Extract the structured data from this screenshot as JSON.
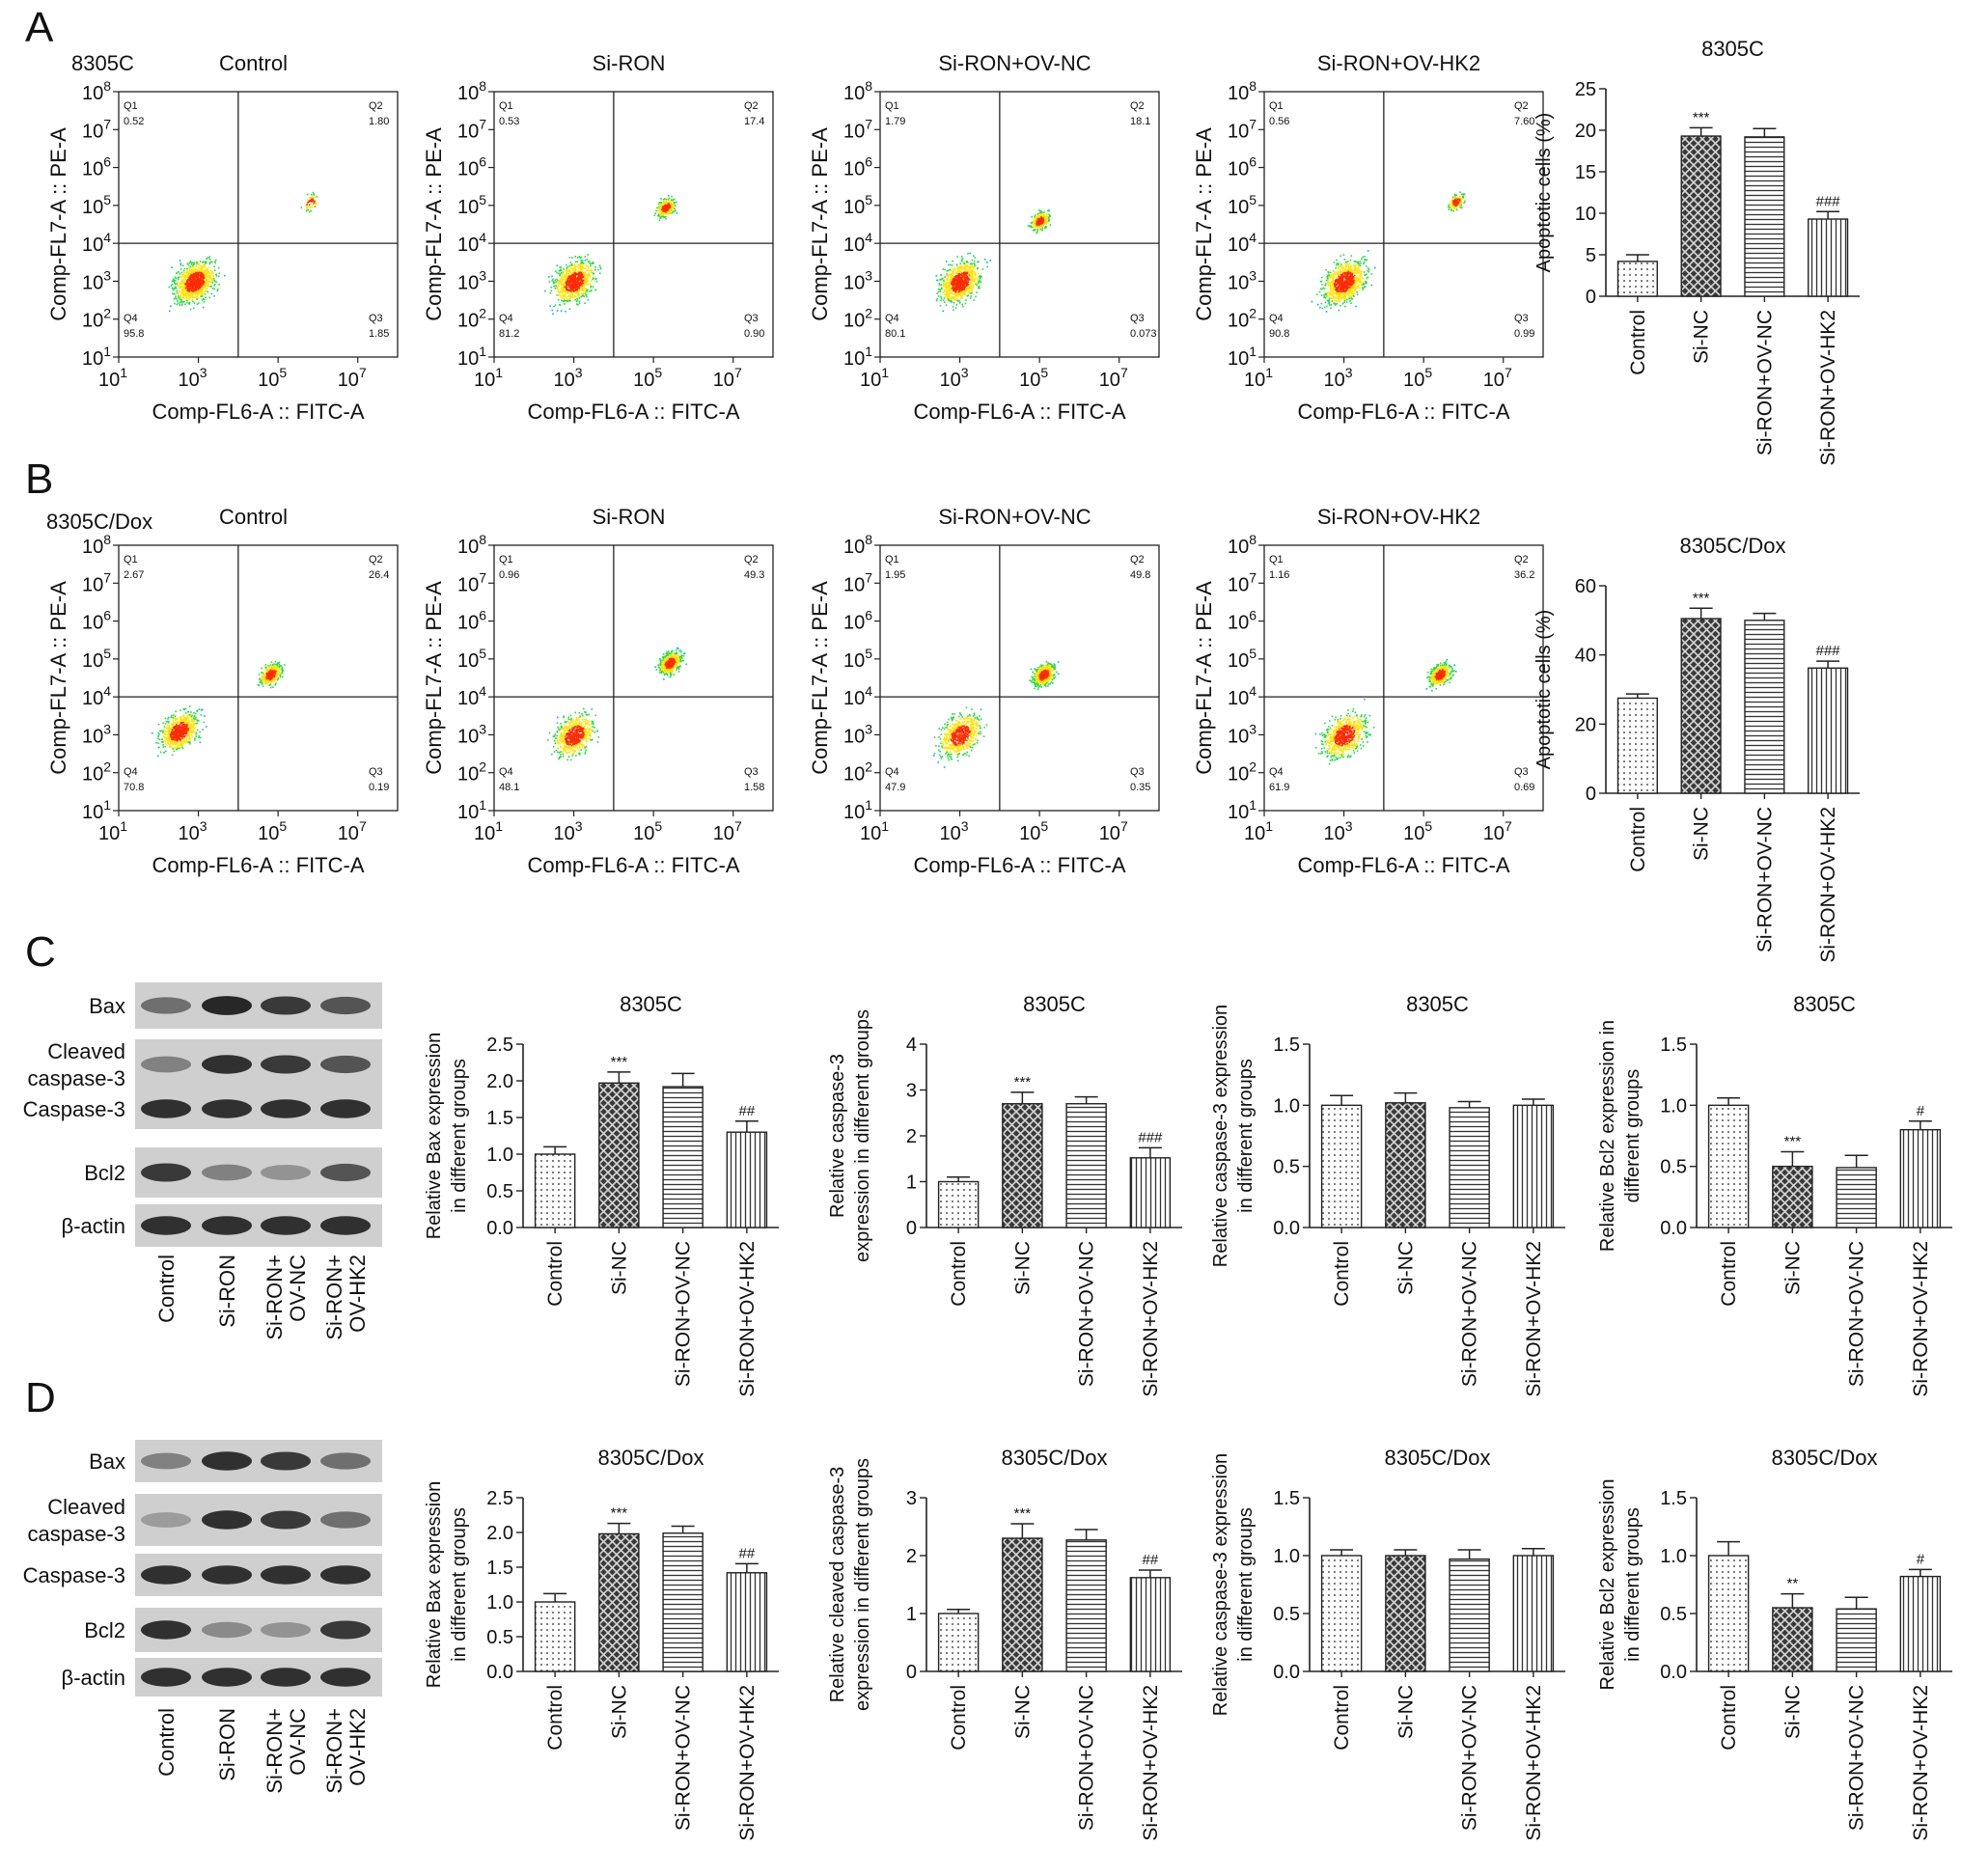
{
  "panel_labels": [
    "A",
    "B",
    "C",
    "D"
  ],
  "flow_x_label": "Comp-FL6-A :: FITC-A",
  "flow_y_label": "Comp-FL7-A :: PE-A",
  "flow_x_ticks": [
    "10^1",
    "10^3",
    "10^5",
    "10^7"
  ],
  "flow_y_ticks": [
    "10^1",
    "10^2",
    "10^3",
    "10^4",
    "10^5",
    "10^6",
    "10^7",
    "10^8"
  ],
  "quadrant_names": [
    "Q1",
    "Q2",
    "Q3",
    "Q4"
  ],
  "flow_rows": [
    {
      "cell_line": "8305C",
      "panels": [
        {
          "title": "Control",
          "q1": "0.52",
          "q2": "1.80",
          "q3": "1.85",
          "q4": "95.8",
          "clusters": [
            {
              "x": 2.9,
              "y": 3.0,
              "spread": 0.38,
              "n": 900
            },
            {
              "x": 5.8,
              "y": 5.1,
              "spread": 0.15,
              "n": 60
            }
          ]
        },
        {
          "title": "Si-RON",
          "q1": "0.53",
          "q2": "17.4",
          "q3": "0.90",
          "q4": "81.2",
          "clusters": [
            {
              "x": 3.0,
              "y": 3.0,
              "spread": 0.38,
              "n": 780
            },
            {
              "x": 5.3,
              "y": 4.95,
              "spread": 0.17,
              "n": 300
            }
          ]
        },
        {
          "title": "Si-RON+OV-NC",
          "q1": "1.79",
          "q2": "18.1",
          "q3": "0.073",
          "q4": "80.1",
          "clusters": [
            {
              "x": 3.0,
              "y": 3.0,
              "spread": 0.38,
              "n": 780
            },
            {
              "x": 5.0,
              "y": 4.6,
              "spread": 0.17,
              "n": 300
            }
          ]
        },
        {
          "title": "Si-RON+OV-HK2",
          "q1": "0.56",
          "q2": "7.60",
          "q3": "0.99",
          "q4": "90.8",
          "clusters": [
            {
              "x": 3.0,
              "y": 3.0,
              "spread": 0.4,
              "n": 850
            },
            {
              "x": 5.8,
              "y": 5.1,
              "spread": 0.15,
              "n": 150
            }
          ]
        }
      ]
    },
    {
      "cell_line": "8305C/Dox",
      "panels": [
        {
          "title": "Control",
          "q1": "2.67",
          "q2": "26.4",
          "q3": "0.19",
          "q4": "70.8",
          "clusters": [
            {
              "x": 2.5,
              "y": 3.1,
              "spread": 0.35,
              "n": 700
            },
            {
              "x": 4.8,
              "y": 4.6,
              "spread": 0.2,
              "n": 400
            }
          ]
        },
        {
          "title": "Si-RON",
          "q1": "0.96",
          "q2": "49.3",
          "q3": "1.58",
          "q4": "48.1",
          "clusters": [
            {
              "x": 3.0,
              "y": 3.0,
              "spread": 0.38,
              "n": 600
            },
            {
              "x": 5.4,
              "y": 4.9,
              "spread": 0.2,
              "n": 550
            }
          ]
        },
        {
          "title": "Si-RON+OV-NC",
          "q1": "1.95",
          "q2": "49.8",
          "q3": "0.35",
          "q4": "47.9",
          "clusters": [
            {
              "x": 3.0,
              "y": 3.0,
              "spread": 0.38,
              "n": 600
            },
            {
              "x": 5.1,
              "y": 4.6,
              "spread": 0.2,
              "n": 550
            }
          ]
        },
        {
          "title": "Si-RON+OV-HK2",
          "q1": "1.16",
          "q2": "36.2",
          "q3": "0.69",
          "q4": "61.9",
          "clusters": [
            {
              "x": 3.0,
              "y": 3.0,
              "spread": 0.4,
              "n": 700
            },
            {
              "x": 5.4,
              "y": 4.6,
              "spread": 0.2,
              "n": 450
            }
          ]
        }
      ]
    }
  ],
  "western_blot": {
    "lane_labels": [
      [
        "Control"
      ],
      [
        "Si-RON"
      ],
      [
        "Si-RON+",
        "OV-NC"
      ],
      [
        "Si-RON+",
        "OV-HK2"
      ]
    ],
    "blots": [
      {
        "rows": [
          {
            "label": [
              "Bax"
            ],
            "intensity": [
              0.55,
              0.95,
              0.85,
              0.7
            ]
          },
          {
            "label": [
              "Cleaved",
              "caspase-3"
            ],
            "intensity": [
              0.45,
              0.9,
              0.85,
              0.7
            ]
          },
          {
            "label": [
              "Caspase-3"
            ],
            "intensity": [
              0.9,
              0.9,
              0.9,
              0.9
            ]
          },
          {
            "label": [
              "Bcl2"
            ],
            "intensity": [
              0.85,
              0.45,
              0.35,
              0.7
            ]
          },
          {
            "label": [
              "β-actin"
            ],
            "intensity": [
              0.9,
              0.9,
              0.9,
              0.9
            ]
          }
        ]
      },
      {
        "rows": [
          {
            "label": [
              "Bax"
            ],
            "intensity": [
              0.45,
              0.9,
              0.85,
              0.55
            ]
          },
          {
            "label": [
              "Cleaved",
              "caspase-3"
            ],
            "intensity": [
              0.3,
              0.9,
              0.85,
              0.55
            ]
          },
          {
            "label": [
              "Caspase-3"
            ],
            "intensity": [
              0.9,
              0.9,
              0.9,
              0.9
            ]
          },
          {
            "label": [
              "Bcl2"
            ],
            "intensity": [
              0.9,
              0.4,
              0.35,
              0.85
            ]
          },
          {
            "label": [
              "β-actin"
            ],
            "intensity": [
              0.9,
              0.9,
              0.9,
              0.9
            ]
          }
        ]
      }
    ]
  },
  "bar_patterns": [
    "dots",
    "crosshatch",
    "hlines",
    "vlines"
  ],
  "chart_data": [
    {
      "id": "A-apoptosis",
      "type": "bar",
      "title": "8305C",
      "xlabel": "",
      "ylabel": [
        "Apoptotic cells (%)"
      ],
      "categories": [
        "Control",
        "Si-NC",
        "Si-RON+OV-NC",
        "Si-RON+OV-HK2"
      ],
      "values": [
        4.2,
        19.3,
        19.2,
        9.3
      ],
      "errors": [
        0.8,
        1.0,
        1.0,
        0.9
      ],
      "annotations": [
        "",
        "***",
        "",
        "###"
      ],
      "ylim": [
        0,
        25
      ],
      "yticks": [
        0,
        5,
        10,
        15,
        20,
        25
      ],
      "decimals": 0
    },
    {
      "id": "B-apoptosis",
      "type": "bar",
      "title": "8305C/Dox",
      "xlabel": "",
      "ylabel": [
        "Apoptotic cells (%)"
      ],
      "categories": [
        "Control",
        "Si-NC",
        "Si-RON+OV-NC",
        "Si-RON+OV-HK2"
      ],
      "values": [
        27.5,
        50.5,
        50.0,
        36.2
      ],
      "errors": [
        1.2,
        3.0,
        2.0,
        2.0
      ],
      "annotations": [
        "",
        "***",
        "",
        "###"
      ],
      "ylim": [
        0,
        60
      ],
      "yticks": [
        0,
        20,
        40,
        60
      ],
      "decimals": 0
    },
    {
      "id": "C-bax",
      "type": "bar",
      "title": "8305C",
      "xlabel": "",
      "ylabel": [
        "Relative Bax expression",
        "in different groups"
      ],
      "categories": [
        "Control",
        "Si-NC",
        "Si-RON+OV-NC",
        "Si-RON+OV-HK2"
      ],
      "values": [
        1.0,
        1.97,
        1.92,
        1.3
      ],
      "errors": [
        0.1,
        0.15,
        0.18,
        0.15
      ],
      "annotations": [
        "",
        "***",
        "",
        "##"
      ],
      "ylim": [
        0,
        2.5
      ],
      "yticks": [
        0,
        0.5,
        1.0,
        1.5,
        2.0,
        2.5
      ],
      "decimals": 1
    },
    {
      "id": "C-cleaved",
      "type": "bar",
      "title": "8305C",
      "xlabel": "",
      "ylabel": [
        "Relative caspase-3",
        "expression in different groups"
      ],
      "categories": [
        "Control",
        "Si-NC",
        "Si-RON+OV-NC",
        "Si-RON+OV-HK2"
      ],
      "values": [
        1.0,
        2.7,
        2.7,
        1.52
      ],
      "errors": [
        0.1,
        0.25,
        0.15,
        0.22
      ],
      "annotations": [
        "",
        "***",
        "",
        "###"
      ],
      "ylim": [
        0,
        4
      ],
      "yticks": [
        0,
        1,
        2,
        3,
        4
      ],
      "decimals": 0
    },
    {
      "id": "C-casp3",
      "type": "bar",
      "title": "8305C",
      "xlabel": "",
      "ylabel": [
        "Relative caspase-3 expression",
        "in different groups"
      ],
      "categories": [
        "Control",
        "Si-NC",
        "Si-RON+OV-NC",
        "Si-RON+OV-HK2"
      ],
      "values": [
        1.0,
        1.02,
        0.98,
        1.0
      ],
      "errors": [
        0.08,
        0.08,
        0.05,
        0.05
      ],
      "annotations": [
        "",
        "",
        "",
        ""
      ],
      "ylim": [
        0,
        1.5
      ],
      "yticks": [
        0,
        0.5,
        1.0,
        1.5
      ],
      "decimals": 1
    },
    {
      "id": "C-bcl2",
      "type": "bar",
      "title": "8305C",
      "xlabel": "",
      "ylabel": [
        "Relative Bcl2 expression in",
        "different groups"
      ],
      "categories": [
        "Control",
        "Si-NC",
        "Si-RON+OV-NC",
        "Si-RON+OV-HK2"
      ],
      "values": [
        1.0,
        0.5,
        0.49,
        0.8
      ],
      "errors": [
        0.06,
        0.12,
        0.1,
        0.07
      ],
      "annotations": [
        "",
        "***",
        "",
        "#"
      ],
      "ylim": [
        0,
        1.5
      ],
      "yticks": [
        0,
        0.5,
        1.0,
        1.5
      ],
      "decimals": 1
    },
    {
      "id": "D-bax",
      "type": "bar",
      "title": "8305C/Dox",
      "xlabel": "",
      "ylabel": [
        "Relative Bax expression",
        "in different groups"
      ],
      "categories": [
        "Control",
        "Si-NC",
        "Si-RON+OV-NC",
        "Si-RON+OV-HK2"
      ],
      "values": [
        1.0,
        1.98,
        1.99,
        1.42
      ],
      "errors": [
        0.12,
        0.15,
        0.1,
        0.13
      ],
      "annotations": [
        "",
        "***",
        "",
        "##"
      ],
      "ylim": [
        0,
        2.5
      ],
      "yticks": [
        0,
        0.5,
        1.0,
        1.5,
        2.0,
        2.5
      ],
      "decimals": 1
    },
    {
      "id": "D-cleaved",
      "type": "bar",
      "title": "8305C/Dox",
      "xlabel": "",
      "ylabel": [
        "Relative cleaved caspase-3",
        "expression in different groups"
      ],
      "categories": [
        "Control",
        "Si-NC",
        "Si-RON+OV-NC",
        "Si-RON+OV-HK2"
      ],
      "values": [
        1.0,
        2.3,
        2.27,
        1.62
      ],
      "errors": [
        0.07,
        0.25,
        0.18,
        0.13
      ],
      "annotations": [
        "",
        "***",
        "",
        "##"
      ],
      "ylim": [
        0,
        3
      ],
      "yticks": [
        0,
        1,
        2,
        3
      ],
      "decimals": 0
    },
    {
      "id": "D-casp3",
      "type": "bar",
      "title": "8305C/Dox",
      "xlabel": "",
      "ylabel": [
        "Relative caspase-3 expression",
        "in different groups"
      ],
      "categories": [
        "Control",
        "Si-NC",
        "Si-RON+OV-NC",
        "Si-RON+OV-HK2"
      ],
      "values": [
        1.0,
        1.0,
        0.97,
        1.0
      ],
      "errors": [
        0.05,
        0.05,
        0.08,
        0.06
      ],
      "annotations": [
        "",
        "",
        "",
        ""
      ],
      "ylim": [
        0,
        1.5
      ],
      "yticks": [
        0,
        0.5,
        1.0,
        1.5
      ],
      "decimals": 1
    },
    {
      "id": "D-bcl2",
      "type": "bar",
      "title": "8305C/Dox",
      "xlabel": "",
      "ylabel": [
        "Relative Bcl2 expression",
        "in different groups"
      ],
      "categories": [
        "Control",
        "Si-NC",
        "Si-RON+OV-NC",
        "Si-RON+OV-HK2"
      ],
      "values": [
        1.0,
        0.55,
        0.54,
        0.82
      ],
      "errors": [
        0.12,
        0.12,
        0.1,
        0.06
      ],
      "annotations": [
        "",
        "**",
        "",
        "#"
      ],
      "ylim": [
        0,
        1.5
      ],
      "yticks": [
        0,
        0.5,
        1.0,
        1.5
      ],
      "decimals": 1
    }
  ]
}
